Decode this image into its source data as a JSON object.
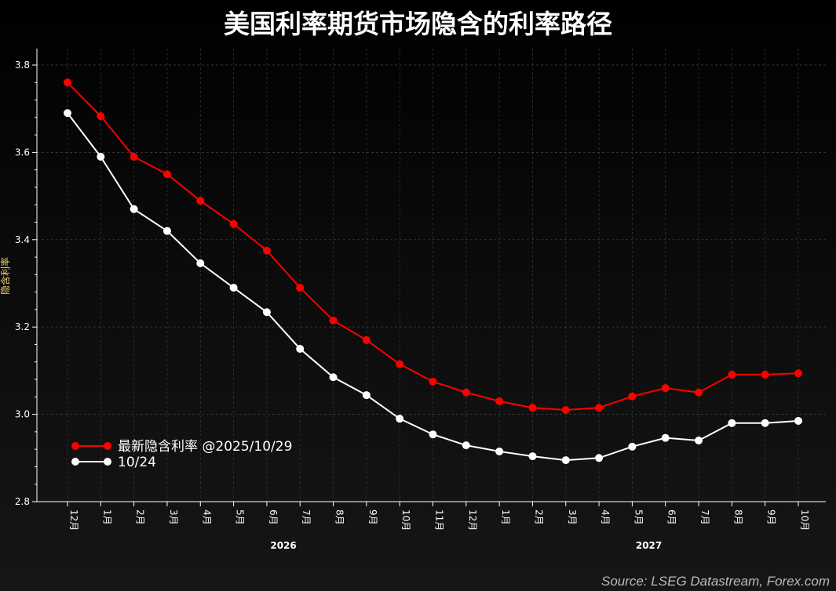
{
  "chart_data": {
    "type": "line",
    "title": "美国利率期货市场隐含的利率路径",
    "ylabel": "隐含利率",
    "xlabel": "",
    "ylim": [
      2.8,
      3.8
    ],
    "yticks": [
      "2.8",
      "3.0",
      "3.2",
      "3.4",
      "3.6",
      "3.8"
    ],
    "categories": [
      "12月",
      "1月",
      "2月",
      "3月",
      "4月",
      "5月",
      "6月",
      "7月",
      "8月",
      "9月",
      "10月",
      "11月",
      "12月",
      "1月",
      "2月",
      "3月",
      "4月",
      "5月",
      "6月",
      "7月",
      "8月",
      "9月",
      "10月"
    ],
    "year_labels": [
      {
        "label": "2026",
        "from": 1,
        "to": 12
      },
      {
        "label": "2027",
        "from": 13,
        "to": 22
      }
    ],
    "grid": true,
    "legend_placement": "lower-left",
    "series": [
      {
        "name": "最新隐含利率 @2025/10/29",
        "color": "#ff0000",
        "values": [
          3.76,
          3.683,
          3.59,
          3.55,
          3.489,
          3.436,
          3.375,
          3.29,
          3.215,
          3.17,
          3.115,
          3.075,
          3.05,
          3.03,
          3.015,
          3.01,
          3.015,
          3.041,
          3.06,
          3.05,
          3.091,
          3.091,
          3.094
        ]
      },
      {
        "name": "10/24",
        "color": "#ffffff",
        "values": [
          3.69,
          3.59,
          3.47,
          3.42,
          3.346,
          3.29,
          3.234,
          3.15,
          3.085,
          3.044,
          2.99,
          2.954,
          2.929,
          2.915,
          2.904,
          2.895,
          2.9,
          2.926,
          2.946,
          2.94,
          2.98,
          2.98,
          2.985
        ]
      }
    ]
  },
  "source": "Source: LSEG Datastream, Forex.com"
}
